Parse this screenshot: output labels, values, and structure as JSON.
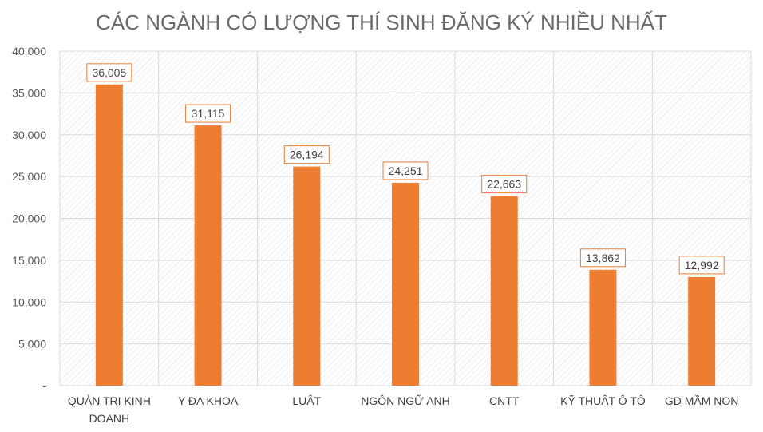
{
  "chart_data": {
    "type": "bar",
    "title": "CÁC NGÀNH CÓ LƯỢNG THÍ SINH ĐĂNG KÝ NHIỀU NHẤT",
    "xlabel": "",
    "ylabel": "",
    "categories": [
      [
        "QUẢN TRỊ KINH",
        "DOANH"
      ],
      [
        "Y ĐA KHOA"
      ],
      [
        "LUẬT"
      ],
      [
        "NGÔN NGỮ ANH"
      ],
      [
        "CNTT"
      ],
      [
        "KỸ THUẬT Ô TÔ"
      ],
      [
        "GD MẦM  NON"
      ]
    ],
    "values": [
      36005,
      31115,
      26194,
      24251,
      22663,
      13862,
      12992
    ],
    "data_labels": [
      "36,005",
      "31,115",
      "26,194",
      "24,251",
      "22,663",
      "13,862",
      "12,992"
    ],
    "ylim": [
      0,
      40000
    ],
    "yticks": [
      0,
      5000,
      10000,
      15000,
      20000,
      25000,
      30000,
      35000,
      40000
    ],
    "ytick_labels": [
      "-",
      "5,000",
      "10,000",
      "15,000",
      "20,000",
      "25,000",
      "30,000",
      "35,000",
      "40,000"
    ],
    "grid": true,
    "legend": "none",
    "colors": {
      "bar": "#ed7d31",
      "label_border": "#ed7d31",
      "gridline": "#d9d9d9",
      "plot_hatch": "#e6e6e6"
    }
  }
}
